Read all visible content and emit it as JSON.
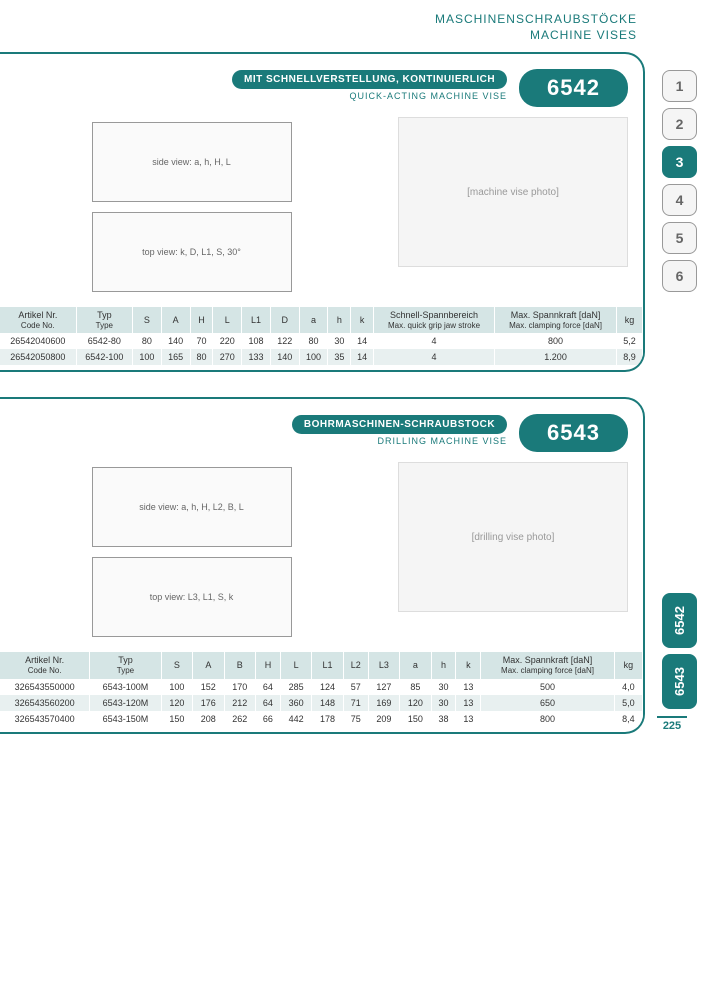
{
  "header": {
    "de": "MASCHINENSCHRAUBSTÖCKE",
    "en": "MACHINE VISES"
  },
  "pageNumber": "225",
  "colors": {
    "brand": "#1a7a7a",
    "th_bg": "#d5e5e5",
    "row_even": "#e8f0f0"
  },
  "sideTabs": [
    "1",
    "2",
    "3",
    "4",
    "5",
    "6"
  ],
  "sideTabActive": 2,
  "bottomTabs": [
    "6542",
    "6543"
  ],
  "sections": [
    {
      "title_de": "MIT SCHNELLVERSTELLUNG, KONTINUIERLICH",
      "title_en": "QUICK-ACTING MACHINE VISE",
      "badge": "6542",
      "photo_alt": "[machine vise photo]",
      "drawings": [
        "side view: a, h, H, L",
        "top view: k, D, L1, S, 30°"
      ],
      "table": {
        "columns": [
          {
            "de": "Artikel Nr.",
            "en": "Code No."
          },
          {
            "de": "Typ",
            "en": "Type"
          },
          {
            "de": "S",
            "en": ""
          },
          {
            "de": "A",
            "en": ""
          },
          {
            "de": "H",
            "en": ""
          },
          {
            "de": "L",
            "en": ""
          },
          {
            "de": "L1",
            "en": ""
          },
          {
            "de": "D",
            "en": ""
          },
          {
            "de": "a",
            "en": ""
          },
          {
            "de": "h",
            "en": ""
          },
          {
            "de": "k",
            "en": ""
          },
          {
            "de": "Schnell-Spannbereich",
            "en": "Max. quick grip jaw stroke"
          },
          {
            "de": "Max. Spannkraft [daN]",
            "en": "Max. clamping force [daN]"
          },
          {
            "de": "kg",
            "en": ""
          }
        ],
        "rows": [
          [
            "26542040600",
            "6542-80",
            "80",
            "140",
            "70",
            "220",
            "108",
            "122",
            "80",
            "30",
            "14",
            "4",
            "800",
            "5,2"
          ],
          [
            "26542050800",
            "6542-100",
            "100",
            "165",
            "80",
            "270",
            "133",
            "140",
            "100",
            "35",
            "14",
            "4",
            "1.200",
            "8,9"
          ]
        ]
      }
    },
    {
      "title_de": "BOHRMASCHINEN-SCHRAUBSTOCK",
      "title_en": "DRILLING MACHINE VISE",
      "badge": "6543",
      "photo_alt": "[drilling vise photo]",
      "drawings": [
        "side view: a, h, H, L2, B, L",
        "top view: L3, L1, S, k"
      ],
      "table": {
        "columns": [
          {
            "de": "Artikel Nr.",
            "en": "Code No."
          },
          {
            "de": "Typ",
            "en": "Type"
          },
          {
            "de": "S",
            "en": ""
          },
          {
            "de": "A",
            "en": ""
          },
          {
            "de": "B",
            "en": ""
          },
          {
            "de": "H",
            "en": ""
          },
          {
            "de": "L",
            "en": ""
          },
          {
            "de": "L1",
            "en": ""
          },
          {
            "de": "L2",
            "en": ""
          },
          {
            "de": "L3",
            "en": ""
          },
          {
            "de": "a",
            "en": ""
          },
          {
            "de": "h",
            "en": ""
          },
          {
            "de": "k",
            "en": ""
          },
          {
            "de": "Max. Spannkraft [daN]",
            "en": "Max. clamping force [daN]"
          },
          {
            "de": "kg",
            "en": ""
          }
        ],
        "rows": [
          [
            "326543550000",
            "6543-100M",
            "100",
            "152",
            "170",
            "64",
            "285",
            "124",
            "57",
            "127",
            "85",
            "30",
            "13",
            "500",
            "4,0"
          ],
          [
            "326543560200",
            "6543-120M",
            "120",
            "176",
            "212",
            "64",
            "360",
            "148",
            "71",
            "169",
            "120",
            "30",
            "13",
            "650",
            "5,0"
          ],
          [
            "326543570400",
            "6543-150M",
            "150",
            "208",
            "262",
            "66",
            "442",
            "178",
            "75",
            "209",
            "150",
            "38",
            "13",
            "800",
            "8,4"
          ]
        ]
      }
    }
  ]
}
